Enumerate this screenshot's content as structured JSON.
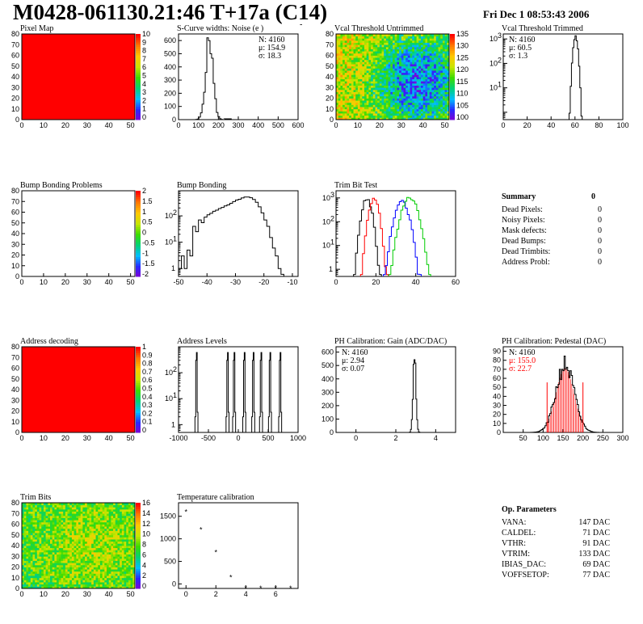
{
  "header": {
    "title": "M0428-061130.21:46 T+17a (C14)",
    "date": "Fri Dec  1 08:53:43 2006"
  },
  "summary": {
    "title": "Summary",
    "total": "0",
    "rows": [
      {
        "label": "Dead Pixels:",
        "value": "0"
      },
      {
        "label": "Noisy Pixels:",
        "value": "0"
      },
      {
        "label": "Mask defects:",
        "value": "0"
      },
      {
        "label": "Dead Bumps:",
        "value": "0"
      },
      {
        "label": "Dead Trimbits:",
        "value": "0"
      },
      {
        "label": "Address Probl:",
        "value": "0"
      }
    ]
  },
  "op_params": {
    "title": "Op. Parameters",
    "rows": [
      {
        "label": "VANA:",
        "value": "147 DAC"
      },
      {
        "label": "CALDEL:",
        "value": "71 DAC"
      },
      {
        "label": "VTHR:",
        "value": "91 DAC"
      },
      {
        "label": "VTRIM:",
        "value": "133 DAC"
      },
      {
        "label": "IBIAS_DAC:",
        "value": "69 DAC"
      },
      {
        "label": "VOFFSETOP:",
        "value": "77 DAC"
      }
    ]
  },
  "chart_data": [
    {
      "id": "pixel-map",
      "type": "heatmap",
      "title": "Pixel Map",
      "xlim": [
        0,
        52
      ],
      "ylim": [
        0,
        80
      ],
      "xticks": [
        0,
        10,
        20,
        30,
        40,
        50
      ],
      "yticks": [
        0,
        10,
        20,
        30,
        40,
        50,
        60,
        70,
        80
      ],
      "fill": "uniform",
      "fill_color": "#ff0000",
      "zticks": [
        "10",
        "9",
        "8",
        "7",
        "6",
        "5",
        "4",
        "3",
        "2",
        "1",
        "0"
      ]
    },
    {
      "id": "scurve-noise",
      "type": "histogram",
      "title": "S-Curve widths: Noise (e )",
      "xlim": [
        0,
        600
      ],
      "ylim": [
        0,
        650
      ],
      "xticks": [
        0,
        100,
        200,
        300,
        400,
        500,
        600
      ],
      "yticks": [
        0,
        100,
        200,
        300,
        400,
        500,
        600
      ],
      "stats": [
        "N: 4160",
        "μ: 154.9",
        "σ: 18.3"
      ],
      "mean": 154.9,
      "sigma": 18.3,
      "peak": 610,
      "color": "#000000"
    },
    {
      "id": "vcal-untrimmed",
      "type": "heatmap",
      "title": "Vcal Threshold Untrimmed",
      "xlim": [
        0,
        52
      ],
      "ylim": [
        0,
        80
      ],
      "xticks": [
        0,
        10,
        20,
        30,
        40,
        50
      ],
      "yticks": [
        0,
        10,
        20,
        30,
        40,
        50,
        60,
        70,
        80
      ],
      "fill": "noisy-gradient",
      "zticks": [
        "135",
        "130",
        "125",
        "120",
        "115",
        "110",
        "105",
        "100"
      ]
    },
    {
      "id": "vcal-trimmed",
      "type": "histogram",
      "title": "Vcal Threshold Trimmed",
      "xlim": [
        0,
        100
      ],
      "log": true,
      "ylim_log": [
        0.5,
        1600
      ],
      "xticks": [
        0,
        20,
        40,
        60,
        80,
        100
      ],
      "yticks_log": [
        10,
        100,
        1000
      ],
      "stats": [
        "N: 4160",
        "μ: 60.5",
        "σ:  1.3"
      ],
      "mean": 60.5,
      "sigma": 1.3,
      "peak": 1300,
      "color": "#000000"
    },
    {
      "id": "bump-problems",
      "type": "heatmap",
      "title": "Bump Bonding Problems",
      "xlim": [
        0,
        52
      ],
      "ylim": [
        0,
        80
      ],
      "xticks": [
        0,
        10,
        20,
        30,
        40,
        50
      ],
      "yticks": [
        0,
        10,
        20,
        30,
        40,
        50,
        60,
        70,
        80
      ],
      "fill": "empty",
      "zticks": [
        "2",
        "1.5",
        "1",
        "0.5",
        "0",
        "-0.5",
        "-1",
        "-1.5",
        "-2"
      ]
    },
    {
      "id": "bump-bonding",
      "type": "histogram",
      "title": "Bump Bonding",
      "xlim": [
        -50,
        -8
      ],
      "log": true,
      "ylim_log": [
        0.5,
        900
      ],
      "xticks": [
        -50,
        -40,
        -30,
        -20,
        -10
      ],
      "yticks_log": [
        1,
        10,
        100
      ],
      "envelope": [
        [
          -50,
          1
        ],
        [
          -49,
          3
        ],
        [
          -48,
          1
        ],
        [
          -47,
          5
        ],
        [
          -46,
          3
        ],
        [
          -45,
          40
        ],
        [
          -44,
          25
        ],
        [
          -43,
          70
        ],
        [
          -42,
          55
        ],
        [
          -41,
          90
        ],
        [
          -40,
          110
        ],
        [
          -39,
          125
        ],
        [
          -38,
          150
        ],
        [
          -37,
          165
        ],
        [
          -36,
          190
        ],
        [
          -35,
          210
        ],
        [
          -34,
          240
        ],
        [
          -33,
          260
        ],
        [
          -32,
          300
        ],
        [
          -31,
          350
        ],
        [
          -30,
          400
        ],
        [
          -29,
          430
        ],
        [
          -28,
          480
        ],
        [
          -27,
          520
        ],
        [
          -26,
          520
        ],
        [
          -25,
          490
        ],
        [
          -24,
          420
        ],
        [
          -23,
          330
        ],
        [
          -22,
          220
        ],
        [
          -21,
          130
        ],
        [
          -20,
          70
        ],
        [
          -19,
          40
        ],
        [
          -18,
          15
        ],
        [
          -17,
          6
        ],
        [
          -16,
          3
        ],
        [
          -15,
          1
        ],
        [
          -14,
          0.6
        ]
      ],
      "color": "#000000"
    },
    {
      "id": "trim-bit-test",
      "type": "histogram",
      "title": "Trim Bit Test",
      "xlim": [
        0,
        60
      ],
      "log": true,
      "ylim_log": [
        0.5,
        2000
      ],
      "xticks": [
        0,
        20,
        40,
        60
      ],
      "yticks_log": [
        1,
        10,
        100,
        1000
      ],
      "series": [
        {
          "mean": 15.5,
          "sigma": 1.6,
          "peak": 900,
          "color": "#000000"
        },
        {
          "mean": 19.0,
          "sigma": 1.6,
          "peak": 900,
          "color": "#ff0000"
        },
        {
          "mean": 33.0,
          "sigma": 2.2,
          "peak": 700,
          "color": "#0000ff"
        },
        {
          "mean": 37.0,
          "sigma": 2.5,
          "peak": 1000,
          "color": "#00cc00"
        }
      ]
    },
    {
      "id": "address-decoding",
      "type": "heatmap",
      "title": "Address decoding",
      "xlim": [
        0,
        52
      ],
      "ylim": [
        0,
        80
      ],
      "xticks": [
        0,
        10,
        20,
        30,
        40,
        50
      ],
      "yticks": [
        0,
        10,
        20,
        30,
        40,
        50,
        60,
        70,
        80
      ],
      "fill": "uniform",
      "fill_color": "#ff0000",
      "zticks": [
        "1",
        "0.9",
        "0.8",
        "0.7",
        "0.6",
        "0.5",
        "0.4",
        "0.3",
        "0.2",
        "0.1",
        "0"
      ]
    },
    {
      "id": "address-levels",
      "type": "histogram",
      "title": "Address Levels",
      "xlim": [
        -1000,
        1000
      ],
      "log": true,
      "ylim_log": [
        0.5,
        1000
      ],
      "xticks": [
        -1000,
        -500,
        0,
        500,
        1000
      ],
      "yticks_log": [
        1,
        10,
        100
      ],
      "spikes": [
        -700,
        -180,
        -70,
        100,
        250,
        380,
        530,
        700
      ],
      "spike_height": 600,
      "color": "#000000"
    },
    {
      "id": "ph-gain",
      "type": "histogram",
      "title": "PH Calibration: Gain (ADC/DAC)",
      "xlim": [
        -1,
        5
      ],
      "ylim": [
        0,
        640
      ],
      "xticks": [
        0,
        2,
        4
      ],
      "yticks": [
        0,
        100,
        200,
        300,
        400,
        500,
        600
      ],
      "stats": [
        "N: 4160",
        "μ: 2.94",
        "σ: 0.07"
      ],
      "mean": 2.94,
      "sigma": 0.07,
      "peak": 610,
      "color": "#000000"
    },
    {
      "id": "ph-pedestal",
      "type": "histogram",
      "title": "PH Calibration: Pedestal (DAC)",
      "xlim": [
        0,
        300
      ],
      "ylim": [
        0,
        95
      ],
      "xticks": [
        50,
        100,
        150,
        200,
        250,
        300
      ],
      "yticks": [
        0,
        10,
        20,
        30,
        40,
        50,
        60,
        70,
        80,
        90
      ],
      "stats": [
        "N: 4160",
        "μ: 155.0",
        "σ: 22.7"
      ],
      "mean": 155.0,
      "sigma": 22.7,
      "peak": 75,
      "color": "#000000",
      "fit_color": "#ff0000",
      "fit_markers": [
        110,
        200
      ]
    },
    {
      "id": "trim-bits",
      "type": "heatmap",
      "title": "Trim Bits",
      "xlim": [
        0,
        52
      ],
      "ylim": [
        0,
        80
      ],
      "xticks": [
        0,
        10,
        20,
        30,
        40,
        50
      ],
      "yticks": [
        0,
        10,
        20,
        30,
        40,
        50,
        60,
        70,
        80
      ],
      "fill": "trim-noise",
      "zticks": [
        "16",
        "14",
        "12",
        "10",
        "8",
        "6",
        "4",
        "2",
        "0"
      ]
    },
    {
      "id": "temp-calibration",
      "type": "scatter",
      "title": "Temperature calibration",
      "xlim": [
        -0.5,
        7.5
      ],
      "ylim": [
        -100,
        1800
      ],
      "xticks": [
        0,
        2,
        4,
        6
      ],
      "yticks": [
        0,
        500,
        1000,
        1500
      ],
      "x": [
        0,
        1,
        2,
        3,
        4,
        5,
        6,
        7
      ],
      "y": [
        1650,
        1250,
        750,
        200,
        -50,
        -50,
        -50,
        -50
      ],
      "marker": "*"
    }
  ]
}
